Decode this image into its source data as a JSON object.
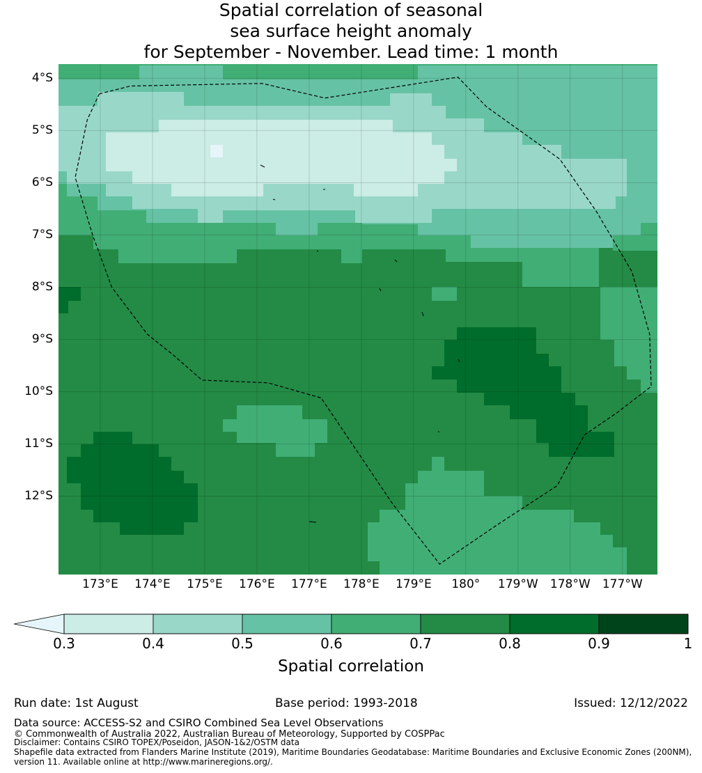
{
  "title": {
    "line1": "Spatial correlation of seasonal",
    "line2": "sea surface height anomaly",
    "line3": "for September - November. Lead time: 1 month"
  },
  "map": {
    "lat_labels": [
      "4°S",
      "5°S",
      "6°S",
      "7°S",
      "8°S",
      "9°S",
      "10°S",
      "11°S",
      "12°S"
    ],
    "lat_values": [
      -4,
      -5,
      -6,
      -7,
      -8,
      -9,
      -10,
      -11,
      -12
    ],
    "lon_labels": [
      "173°E",
      "174°E",
      "175°E",
      "176°E",
      "177°E",
      "178°E",
      "179°E",
      "180°",
      "179°W",
      "178°W",
      "177°W"
    ],
    "lon_values": [
      173,
      174,
      175,
      176,
      177,
      178,
      179,
      180,
      181,
      182,
      183
    ],
    "extent": {
      "lon_min": 172.2,
      "lon_max": 183.67,
      "lat_max": -3.73,
      "lat_min": -13.5
    },
    "eez_boundary": [
      [
        172.98,
        -4.3
      ],
      [
        173.58,
        -4.15
      ],
      [
        176.1,
        -4.1
      ],
      [
        177.3,
        -4.38
      ],
      [
        179.85,
        -3.98
      ],
      [
        180.4,
        -4.55
      ],
      [
        181.8,
        -5.55
      ],
      [
        182.5,
        -6.55
      ],
      [
        183.18,
        -7.7
      ],
      [
        183.52,
        -8.9
      ],
      [
        183.55,
        -9.9
      ],
      [
        182.9,
        -10.4
      ],
      [
        182.27,
        -10.83
      ],
      [
        181.75,
        -11.8
      ],
      [
        180.6,
        -12.55
      ],
      [
        179.5,
        -13.3
      ],
      [
        178.6,
        -12.15
      ],
      [
        177.23,
        -10.12
      ],
      [
        176.21,
        -9.83
      ],
      [
        174.95,
        -9.78
      ],
      [
        174.4,
        -9.3
      ],
      [
        173.9,
        -8.9
      ],
      [
        173.22,
        -8.0
      ],
      [
        172.85,
        -6.99
      ],
      [
        172.52,
        -5.9
      ],
      [
        172.75,
        -4.8
      ],
      [
        172.98,
        -4.3
      ]
    ]
  },
  "colorbar": {
    "label": "Spatial correlation",
    "ticks": [
      "0.3",
      "0.4",
      "0.5",
      "0.6",
      "0.7",
      "0.8",
      "0.9",
      "1"
    ],
    "colors": [
      "#ccece6",
      "#99d8c9",
      "#66c2a4",
      "#41ae76",
      "#238b45",
      "#006d2c",
      "#00441b"
    ],
    "under_color": "#e5f5f9"
  },
  "footer": {
    "run_date": "Run date: 1st August",
    "base_period": "Base period: 1993-2018",
    "issued": "Issued: 12/12/2022",
    "data_source": "Data source: ACCESS-S2 and CSIRO Combined Sea Level Observations",
    "copyright": "© Commonwealth of Australia 2022, Australian Bureau of Meteorology, Supported by COSPPac",
    "disclaimer": "Disclaimer: Contains CSIRO TOPEX/Poseidon, JASON-1&2/OSTM data",
    "shapefile1": "Shapefile data extracted from Flanders Marine Institute (2019), Maritime Boundaries Geodatabase: Maritime Boundaries and Exclusive Economic Zones (200NM),",
    "shapefile2": "version 11. Available online at http://www.marineregions.org/."
  }
}
